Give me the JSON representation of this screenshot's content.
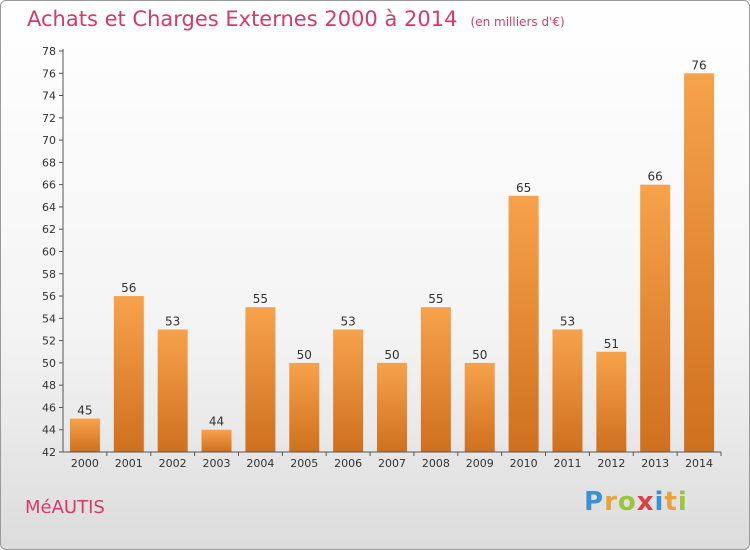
{
  "title": "Achats et Charges Externes 2000 à 2014",
  "subtitle": "(en milliers d'€)",
  "commune": "MéAUTIS",
  "logo": {
    "p": "P",
    "r": "r",
    "o": "o",
    "x": "x",
    "i1": "i",
    "t": "t",
    "i2": "i"
  },
  "colors": {
    "bar_light": "#f7a24c",
    "bar_dark": "#cf701e",
    "title": "#d63a6a"
  },
  "chart_data": {
    "type": "bar",
    "categories": [
      "2000",
      "2001",
      "2002",
      "2003",
      "2004",
      "2005",
      "2006",
      "2007",
      "2008",
      "2009",
      "2010",
      "2011",
      "2012",
      "2013",
      "2014"
    ],
    "values": [
      45,
      56,
      53,
      44,
      55,
      50,
      53,
      50,
      55,
      50,
      65,
      53,
      51,
      66,
      76
    ],
    "ylim": [
      42,
      78
    ],
    "ytick_step": 2,
    "grid": false,
    "title": "Achats et Charges Externes 2000 à 2014",
    "xlabel": "",
    "ylabel": ""
  }
}
